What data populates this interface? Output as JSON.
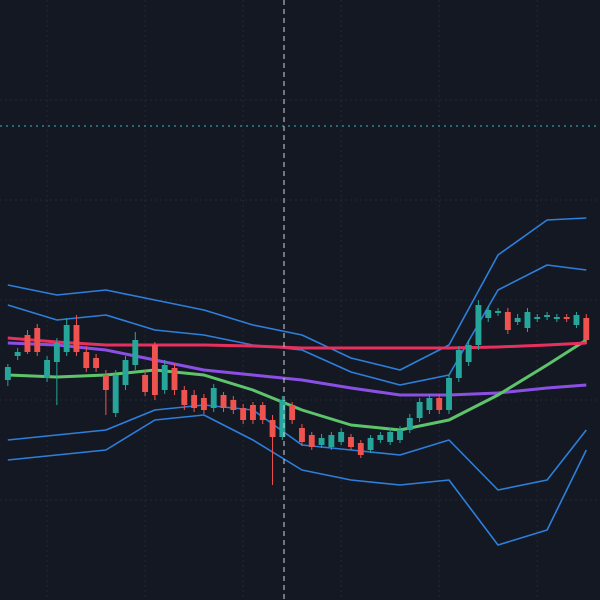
{
  "chart_data": {
    "type": "candlestick",
    "x": [
      1,
      2,
      3,
      4,
      5,
      6,
      7,
      8,
      9,
      10,
      11,
      12,
      13,
      14,
      15,
      16,
      17,
      18,
      19,
      20,
      21,
      22,
      23,
      24,
      25,
      26,
      27,
      28,
      29,
      30,
      31,
      32,
      33,
      34,
      35,
      36,
      37,
      38,
      39,
      40,
      41,
      42,
      43,
      44,
      45,
      46,
      47,
      48,
      49,
      50,
      51,
      52,
      53,
      54,
      55,
      56,
      57,
      58,
      59,
      60
    ],
    "open": [
      220,
      244,
      265,
      272,
      222,
      238,
      248,
      275,
      248,
      242,
      225,
      187,
      215,
      235,
      225,
      255,
      210,
      232,
      210,
      205,
      202,
      192,
      205,
      200,
      192,
      195,
      195,
      180,
      163,
      195,
      172,
      165,
      155,
      153,
      158,
      163,
      157,
      150,
      160,
      158,
      160,
      170,
      182,
      190,
      202,
      190,
      222,
      238,
      255,
      282,
      287,
      288,
      278,
      272,
      281,
      283,
      281,
      283,
      275,
      282
    ],
    "high": [
      236,
      252,
      270,
      276,
      244,
      262,
      282,
      285,
      254,
      246,
      230,
      230,
      244,
      268,
      230,
      258,
      240,
      236,
      214,
      210,
      206,
      216,
      208,
      204,
      196,
      198,
      198,
      185,
      204,
      198,
      176,
      168,
      166,
      168,
      172,
      166,
      160,
      165,
      168,
      172,
      174,
      186,
      202,
      206,
      206,
      226,
      254,
      260,
      300,
      294,
      292,
      292,
      286,
      292,
      286,
      288,
      286,
      286,
      288,
      286
    ],
    "low": [
      214,
      240,
      246,
      244,
      218,
      195,
      244,
      244,
      228,
      228,
      185,
      183,
      210,
      230,
      204,
      200,
      206,
      205,
      190,
      188,
      186,
      188,
      188,
      186,
      176,
      176,
      176,
      115,
      160,
      176,
      154,
      150,
      152,
      150,
      155,
      150,
      142,
      147,
      157,
      155,
      157,
      167,
      178,
      186,
      186,
      186,
      218,
      234,
      250,
      278,
      284,
      266,
      275,
      268,
      278,
      280,
      278,
      278,
      272,
      256
    ],
    "close": [
      233,
      248,
      248,
      248,
      240,
      257,
      275,
      248,
      232,
      232,
      210,
      225,
      240,
      260,
      208,
      205,
      235,
      210,
      195,
      192,
      190,
      212,
      192,
      190,
      180,
      180,
      180,
      163,
      200,
      180,
      158,
      153,
      162,
      165,
      168,
      153,
      145,
      162,
      165,
      168,
      170,
      182,
      198,
      202,
      190,
      222,
      250,
      255,
      295,
      290,
      289,
      270,
      282,
      288,
      283,
      285,
      283,
      281,
      285,
      260
    ],
    "up_color": "#26a69a",
    "down_color": "#ef5350",
    "series": [
      {
        "color": "#2d7fdc",
        "x": [
          1,
          6,
          11,
          16,
          21,
          26,
          31,
          36,
          41,
          46,
          51,
          56,
          60
        ],
        "values": [
          315,
          305,
          310,
          300,
          290,
          275,
          265,
          242,
          230,
          255,
          345,
          380,
          382
        ]
      },
      {
        "color": "#2d7fdc",
        "x": [
          1,
          6,
          11,
          16,
          21,
          26,
          31,
          36,
          41,
          46,
          51,
          56,
          60
        ],
        "values": [
          295,
          280,
          285,
          270,
          265,
          255,
          250,
          228,
          215,
          225,
          310,
          335,
          330
        ]
      },
      {
        "color": "#2d7fdc",
        "x": [
          1,
          6,
          11,
          16,
          21,
          26,
          31,
          36,
          41,
          46,
          51,
          56,
          60
        ],
        "values": [
          160,
          165,
          170,
          190,
          195,
          190,
          155,
          150,
          145,
          160,
          110,
          120,
          170
        ]
      },
      {
        "color": "#2d7fdc",
        "x": [
          1,
          6,
          11,
          16,
          21,
          26,
          31,
          36,
          41,
          46,
          51,
          56,
          60
        ],
        "values": [
          140,
          145,
          150,
          180,
          185,
          160,
          130,
          120,
          115,
          120,
          55,
          70,
          150
        ]
      },
      {
        "color": "#8c4fe6",
        "x": [
          1,
          6,
          11,
          16,
          21,
          26,
          31,
          36,
          41,
          46,
          51,
          56,
          60
        ],
        "values": [
          257,
          255,
          250,
          240,
          230,
          225,
          220,
          212,
          205,
          205,
          207,
          212,
          215
        ]
      },
      {
        "color": "#5ec46c",
        "x": [
          1,
          6,
          11,
          16,
          21,
          26,
          31,
          36,
          41,
          46,
          51,
          56,
          60
        ],
        "values": [
          225,
          223,
          225,
          230,
          225,
          210,
          190,
          175,
          170,
          180,
          205,
          235,
          260
        ]
      },
      {
        "color": "#e8305e",
        "x": [
          1,
          6,
          11,
          16,
          21,
          26,
          31,
          36,
          41,
          46,
          51,
          56,
          60
        ],
        "values": [
          262,
          258,
          255,
          255,
          255,
          254,
          252,
          252,
          252,
          252,
          253,
          255,
          257
        ]
      }
    ],
    "xlim": [
      0.2,
      61.4
    ],
    "ylim": [
      0,
      600
    ],
    "xticks": [
      5,
      15,
      25,
      35,
      45,
      55
    ],
    "yticks": [
      100,
      200,
      300,
      400,
      500
    ],
    "grid": true
  }
}
